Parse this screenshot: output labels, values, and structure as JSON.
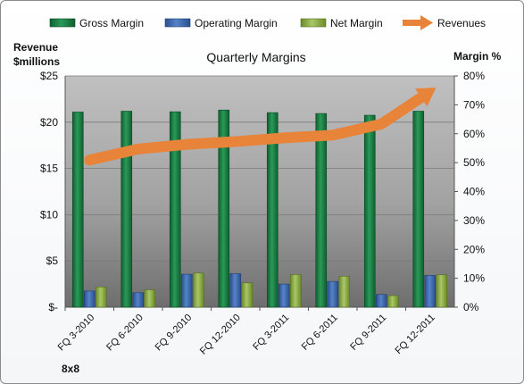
{
  "chart_data": {
    "type": "bar",
    "title": "Quarterly Margins",
    "categories": [
      "FQ 3-2010",
      "FQ 6-2010",
      "FQ 9-2010",
      "FQ 12-2010",
      "FQ 3-2011",
      "FQ 6-2011",
      "FQ 9-2011",
      "FQ 12-2011"
    ],
    "series": [
      {
        "name": "Gross Margin",
        "axis": "right",
        "unit": "%",
        "color": "#1e8a4a",
        "values": [
          67.5,
          67.8,
          67.6,
          68.2,
          67.3,
          67.0,
          66.4,
          67.8
        ]
      },
      {
        "name": "Operating Margin",
        "axis": "right",
        "unit": "%",
        "color": "#3f6db5",
        "values": [
          5.6,
          5.0,
          11.4,
          11.6,
          8.0,
          8.9,
          4.4,
          11.0
        ]
      },
      {
        "name": "Net Margin",
        "axis": "right",
        "unit": "%",
        "color": "#8fb24a",
        "values": [
          7.0,
          6.0,
          11.8,
          8.4,
          11.3,
          10.7,
          4.0,
          11.2
        ]
      },
      {
        "name": "Revenues",
        "type": "line-arrow",
        "axis": "left",
        "unit": "$ millions",
        "color": "#e8833a",
        "values": [
          15.9,
          17.1,
          17.6,
          17.9,
          18.3,
          18.6,
          19.8,
          23.3
        ]
      }
    ],
    "y_left": {
      "label_line1": "Revenue",
      "label_line2": "$millions",
      "range": [
        0,
        25
      ],
      "ticks": [
        {
          "value": 0,
          "label": "$-"
        },
        {
          "value": 5,
          "label": "$5"
        },
        {
          "value": 10,
          "label": "$10"
        },
        {
          "value": 15,
          "label": "$15"
        },
        {
          "value": 20,
          "label": "$20"
        },
        {
          "value": 25,
          "label": "$25"
        }
      ]
    },
    "y_right": {
      "label": "Margin %",
      "range": [
        0,
        80
      ],
      "ticks": [
        {
          "value": 0,
          "label": "0%"
        },
        {
          "value": 10,
          "label": "10%"
        },
        {
          "value": 20,
          "label": "20%"
        },
        {
          "value": 30,
          "label": "30%"
        },
        {
          "value": 40,
          "label": "40%"
        },
        {
          "value": 50,
          "label": "50%"
        },
        {
          "value": 60,
          "label": "60%"
        },
        {
          "value": 70,
          "label": "70%"
        },
        {
          "value": 80,
          "label": "80%"
        }
      ]
    },
    "grid": true,
    "legend": "top",
    "company": "8x8"
  }
}
